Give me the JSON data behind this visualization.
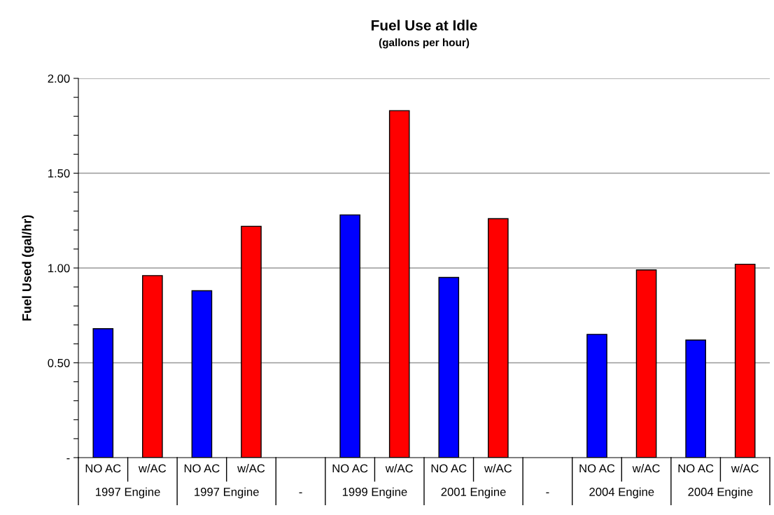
{
  "chart_data": {
    "type": "bar",
    "title": "Fuel Use at Idle",
    "subtitle": "(gallons per hour)",
    "ylabel": "Fuel Used (gal/hr)",
    "categories": [
      "NO AC",
      "w/AC",
      "NO AC",
      "w/AC",
      null,
      "NO AC",
      "w/AC",
      "NO AC",
      "w/AC",
      null,
      "NO AC",
      "w/AC",
      "NO AC",
      "w/AC"
    ],
    "values": [
      0.68,
      0.96,
      0.88,
      1.22,
      null,
      1.28,
      1.83,
      0.95,
      1.26,
      null,
      0.65,
      0.99,
      0.62,
      1.02
    ],
    "colors": [
      "#0000ff",
      "#ff0000",
      "#0000ff",
      "#ff0000",
      null,
      "#0000ff",
      "#ff0000",
      "#0000ff",
      "#ff0000",
      null,
      "#0000ff",
      "#ff0000",
      "#0000ff",
      "#ff0000"
    ],
    "annotations": [
      "1997 Engine",
      "1997 Engine",
      "-",
      "1999 Engine",
      "2001 Engine",
      "-",
      "2004 Engine",
      "2004 Engine"
    ],
    "ylim": [
      0,
      2
    ],
    "yticks": [
      {
        "value": 0,
        "label": "-"
      },
      {
        "value": 0.1,
        "label": null
      },
      {
        "value": 0.2,
        "label": null
      },
      {
        "value": 0.3,
        "label": null
      },
      {
        "value": 0.4,
        "label": null
      },
      {
        "value": 0.5,
        "label": "0.50"
      },
      {
        "value": 0.6,
        "label": null
      },
      {
        "value": 0.7,
        "label": null
      },
      {
        "value": 0.8,
        "label": null
      },
      {
        "value": 0.9,
        "label": null
      },
      {
        "value": 1.0,
        "label": "1.00"
      },
      {
        "value": 1.1,
        "label": null
      },
      {
        "value": 1.2,
        "label": null
      },
      {
        "value": 1.3,
        "label": null
      },
      {
        "value": 1.4,
        "label": null
      },
      {
        "value": 1.5,
        "label": "1.50"
      },
      {
        "value": 1.6,
        "label": null
      },
      {
        "value": 1.7,
        "label": null
      },
      {
        "value": 1.8,
        "label": null
      },
      {
        "value": 1.9,
        "label": null
      },
      {
        "value": 2.0,
        "label": "2.00"
      }
    ],
    "grid": "y",
    "legend": false
  }
}
